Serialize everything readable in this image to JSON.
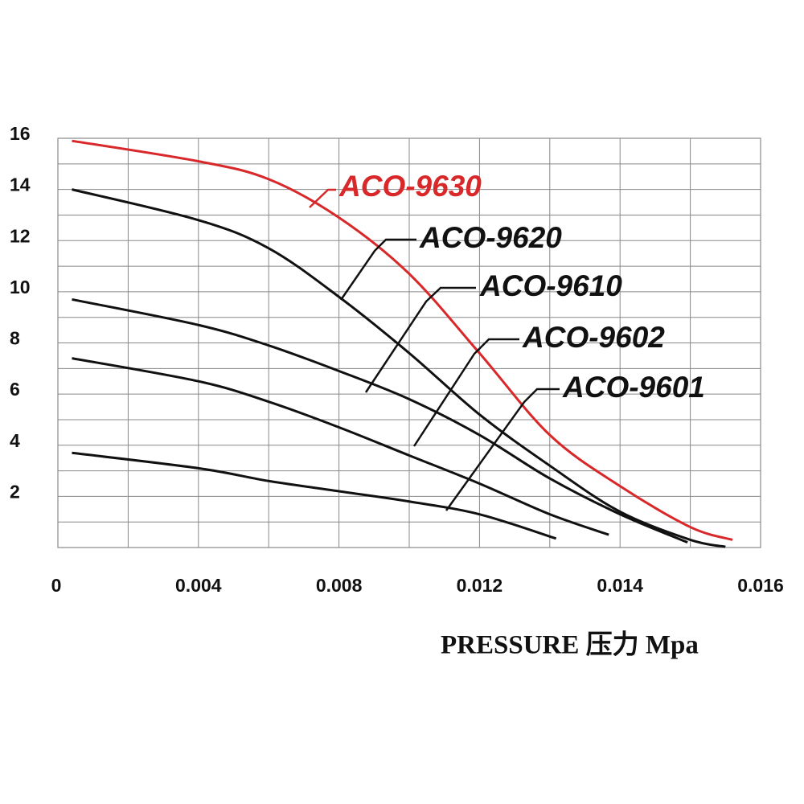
{
  "chart_data": {
    "type": "line",
    "x_title": "PRESSURE 压力 Mpa",
    "xlim": [
      0,
      0.016
    ],
    "xticks": [
      0,
      0.004,
      0.008,
      0.012,
      0.014,
      0.016
    ],
    "ylim": [
      0,
      16
    ],
    "yticks": [
      2,
      4,
      6,
      8,
      10,
      12,
      14,
      16
    ],
    "grid": true,
    "series": [
      {
        "name": "ACO-9630",
        "color": "#d8282a",
        "x": [
          0.0004,
          0.004,
          0.006,
          0.008,
          0.01,
          0.012,
          0.013,
          0.014,
          0.015,
          0.0156
        ],
        "values": [
          15.9,
          15.1,
          14.4,
          12.9,
          10.7,
          7.6,
          4.4,
          2.4,
          0.8,
          0.3
        ]
      },
      {
        "name": "ACO-9620",
        "color": "#111111",
        "x": [
          0.0004,
          0.004,
          0.006,
          0.008,
          0.01,
          0.012,
          0.013,
          0.014,
          0.015,
          0.0155
        ],
        "values": [
          14.0,
          12.8,
          11.7,
          9.8,
          7.6,
          5.2,
          3.2,
          1.4,
          0.3,
          0.03
        ]
      },
      {
        "name": "ACO-9610",
        "color": "#111111",
        "x": [
          0.0004,
          0.004,
          0.006,
          0.008,
          0.01,
          0.012,
          0.013,
          0.014,
          0.01496
        ],
        "values": [
          9.7,
          8.7,
          7.9,
          6.9,
          5.8,
          4.4,
          2.7,
          1.3,
          0.2
        ]
      },
      {
        "name": "ACO-9602",
        "color": "#111111",
        "x": [
          0.0004,
          0.004,
          0.006,
          0.008,
          0.01,
          0.012,
          0.013,
          0.01384
        ],
        "values": [
          7.4,
          6.5,
          5.7,
          4.7,
          3.6,
          2.5,
          1.3,
          0.5
        ]
      },
      {
        "name": "ACO-9601",
        "color": "#111111",
        "x": [
          0.0004,
          0.004,
          0.006,
          0.008,
          0.01,
          0.012,
          0.01309
        ],
        "values": [
          3.7,
          3.1,
          2.6,
          2.2,
          1.8,
          1.3,
          0.35
        ]
      }
    ]
  }
}
